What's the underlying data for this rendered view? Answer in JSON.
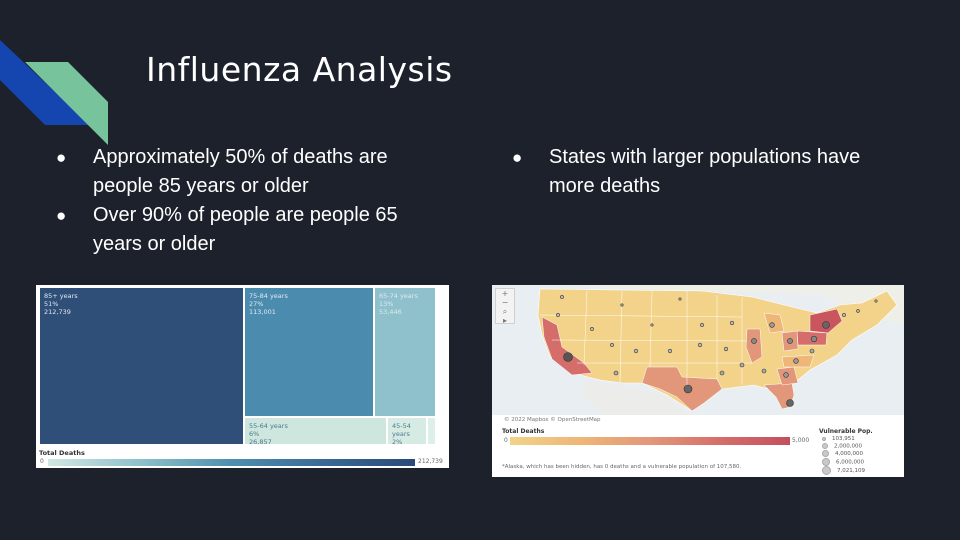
{
  "slide": {
    "title": "Influenza Analysis",
    "colors": {
      "background": "#1c212c",
      "accent_blue": "#1546b0",
      "accent_green": "#77c39c"
    }
  },
  "bullets_left": [
    {
      "text": "Approximately 50% of deaths are people 85 years or older"
    },
    {
      "text": "Over 90% of people are people 65 years or older"
    }
  ],
  "bullets_right": [
    {
      "text": "States with larger populations have more deaths"
    }
  ],
  "bullet_glyph": "●",
  "treemap": {
    "cells": [
      {
        "label": "85+ years\n51%\n212,739"
      },
      {
        "label": "75-84 years\n27%\n113,001"
      },
      {
        "label": "65-74 years\n13%\n53,446"
      },
      {
        "label": "55-64 years\n6%\n26,857"
      },
      {
        "label": "45-54\nyears\n2%"
      }
    ],
    "legend_title": "Total Deaths",
    "legend_min": "0",
    "legend_max": "212,739"
  },
  "map": {
    "toolbar": [
      "+",
      "−",
      "⌕",
      "▸"
    ],
    "attribution": "© 2022 Mapbox © OpenStreetMap",
    "legend_title": "Total Deaths",
    "legend_min": "0",
    "legend_max": "5,000",
    "vulnerable_title": "Vulnerable Pop.",
    "vulnerable_sizes": [
      "103,951",
      "2,000,000",
      "4,000,000",
      "6,000,000",
      "7,021,109"
    ],
    "note": "*Alaska, which has been hidden, has 0 deaths and a vulnerable population of 107,580."
  }
}
